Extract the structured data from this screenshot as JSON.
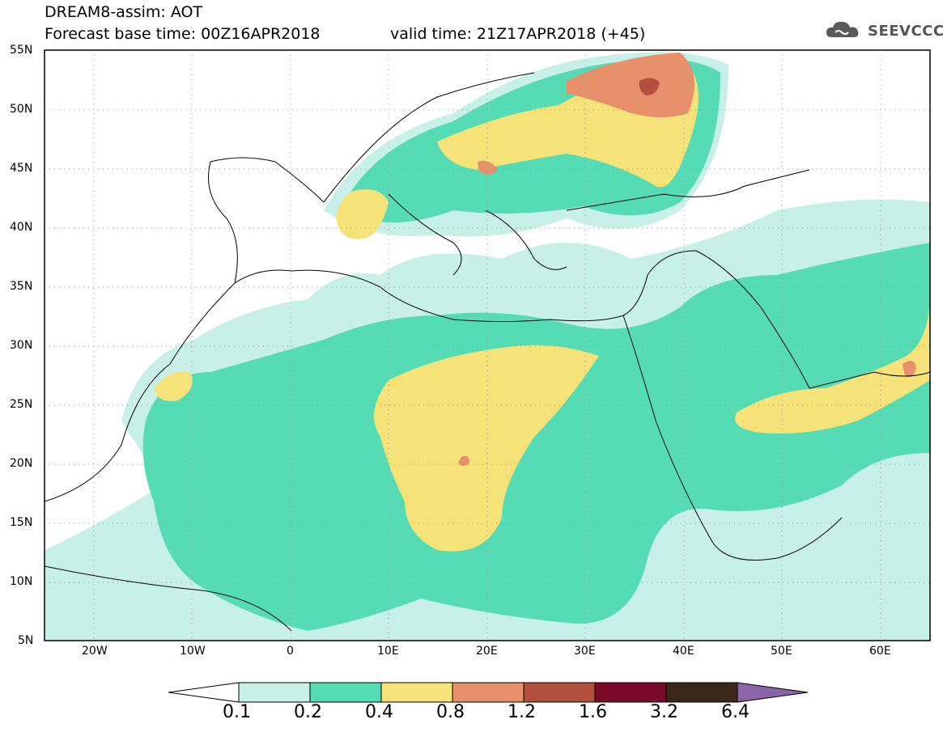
{
  "header": {
    "model_title": "DREAM8-assim: AOT",
    "base_time": "Forecast base time: 00Z16APR2018",
    "valid_time": "valid time: 21Z17APR2018 (+45)",
    "logo_text": "SEEVCCC",
    "logo_icon": "cloud-icon"
  },
  "map": {
    "lat_labels": [
      "55N",
      "50N",
      "45N",
      "40N",
      "35N",
      "30N",
      "25N",
      "20N",
      "15N",
      "10N",
      "5N"
    ],
    "lon_labels": [
      "20W",
      "10W",
      "0",
      "10E",
      "20E",
      "30E",
      "40E",
      "50E",
      "60E"
    ],
    "extent": {
      "lon_min": -25,
      "lon_max": 65,
      "lat_min": 5,
      "lat_max": 55
    },
    "grid": "dotted",
    "variable": "Aerosol optical thickness"
  },
  "colorbar": {
    "levels": [
      "0.1",
      "0.2",
      "0.4",
      "0.8",
      "1.2",
      "1.6",
      "3.2",
      "6.4"
    ],
    "colors": [
      "#ffffff",
      "#c6f0e8",
      "#55dcb4",
      "#f5e37a",
      "#e8906a",
      "#b3503c",
      "#7a0a28",
      "#3a2818",
      "#8c64a8"
    ]
  }
}
